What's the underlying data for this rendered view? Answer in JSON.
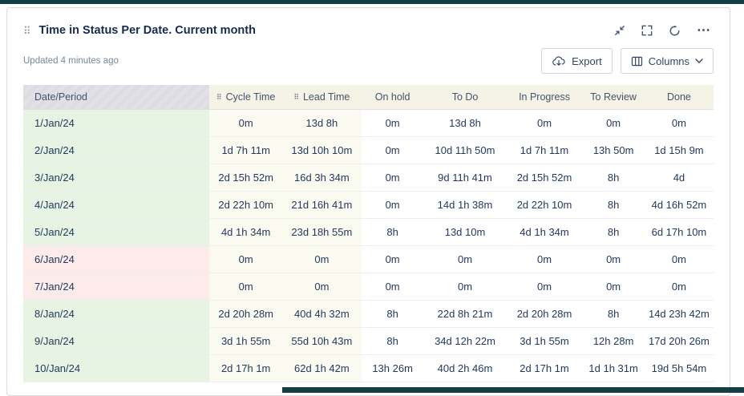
{
  "widget": {
    "title": "Time in Status Per Date. Current month",
    "updated": "Updated 4 minutes ago",
    "toolbar": {
      "export": "Export",
      "columns": "Columns"
    }
  },
  "icons": {
    "drag_handle": "⠿",
    "column_grid": "⠿",
    "more": "⋯"
  },
  "colors": {
    "topbar": "#123e44",
    "weekday_bg": "#e7f4e3",
    "weekend_bg": "#fcebe9",
    "metric_bg": "#fbfaf1",
    "header_bg": "#f4f3e5",
    "date_header_bg": "#e2e1e7"
  },
  "table": {
    "columns": [
      {
        "label": "Date/Period"
      },
      {
        "label": "Cycle Time",
        "icon": true
      },
      {
        "label": "Lead Time",
        "icon": true
      },
      {
        "label": "On hold"
      },
      {
        "label": "To Do"
      },
      {
        "label": "In Progress"
      },
      {
        "label": "To Review"
      },
      {
        "label": "Done"
      }
    ],
    "rows": [
      {
        "date": "1/Jan/24",
        "highlight": "green",
        "values": [
          "0m",
          "13d 8h",
          "0m",
          "13d 8h",
          "0m",
          "0m",
          "0m"
        ]
      },
      {
        "date": "2/Jan/24",
        "highlight": "green",
        "values": [
          "1d 7h 11m",
          "13d 10h 10m",
          "0m",
          "10d 11h 50m",
          "1d 7h 11m",
          "13h 50m",
          "1d 15h 9m"
        ]
      },
      {
        "date": "3/Jan/24",
        "highlight": "green",
        "values": [
          "2d 15h 52m",
          "16d 3h 34m",
          "0m",
          "9d 11h 41m",
          "2d 15h 52m",
          "8h",
          "4d"
        ]
      },
      {
        "date": "4/Jan/24",
        "highlight": "green",
        "values": [
          "2d 22h 10m",
          "21d 16h 41m",
          "0m",
          "14d 1h 38m",
          "2d 22h 10m",
          "8h",
          "4d 16h 52m"
        ]
      },
      {
        "date": "5/Jan/24",
        "highlight": "green",
        "values": [
          "4d 1h 34m",
          "23d 18h 55m",
          "8h",
          "13d 10m",
          "4d 1h 34m",
          "8h",
          "6d 17h 10m"
        ]
      },
      {
        "date": "6/Jan/24",
        "highlight": "pink",
        "values": [
          "0m",
          "0m",
          "0m",
          "0m",
          "0m",
          "0m",
          "0m"
        ]
      },
      {
        "date": "7/Jan/24",
        "highlight": "pink",
        "values": [
          "0m",
          "0m",
          "0m",
          "0m",
          "0m",
          "0m",
          "0m"
        ]
      },
      {
        "date": "8/Jan/24",
        "highlight": "green",
        "values": [
          "2d 20h 28m",
          "40d 4h 32m",
          "8h",
          "22d 8h 21m",
          "2d 20h 28m",
          "8h",
          "14d 23h 42m"
        ]
      },
      {
        "date": "9/Jan/24",
        "highlight": "green",
        "values": [
          "3d 1h 55m",
          "55d 10h 43m",
          "8h",
          "34d 12h 22m",
          "3d 1h 55m",
          "12h 28m",
          "17d 20h 26m"
        ]
      },
      {
        "date": "10/Jan/24",
        "highlight": "green",
        "values": [
          "2d 17h 1m",
          "62d 1h 42m",
          "13h 26m",
          "40d 2h 46m",
          "2d 17h 1m",
          "1d 1h 31m",
          "19d 5h 54m"
        ]
      }
    ]
  }
}
